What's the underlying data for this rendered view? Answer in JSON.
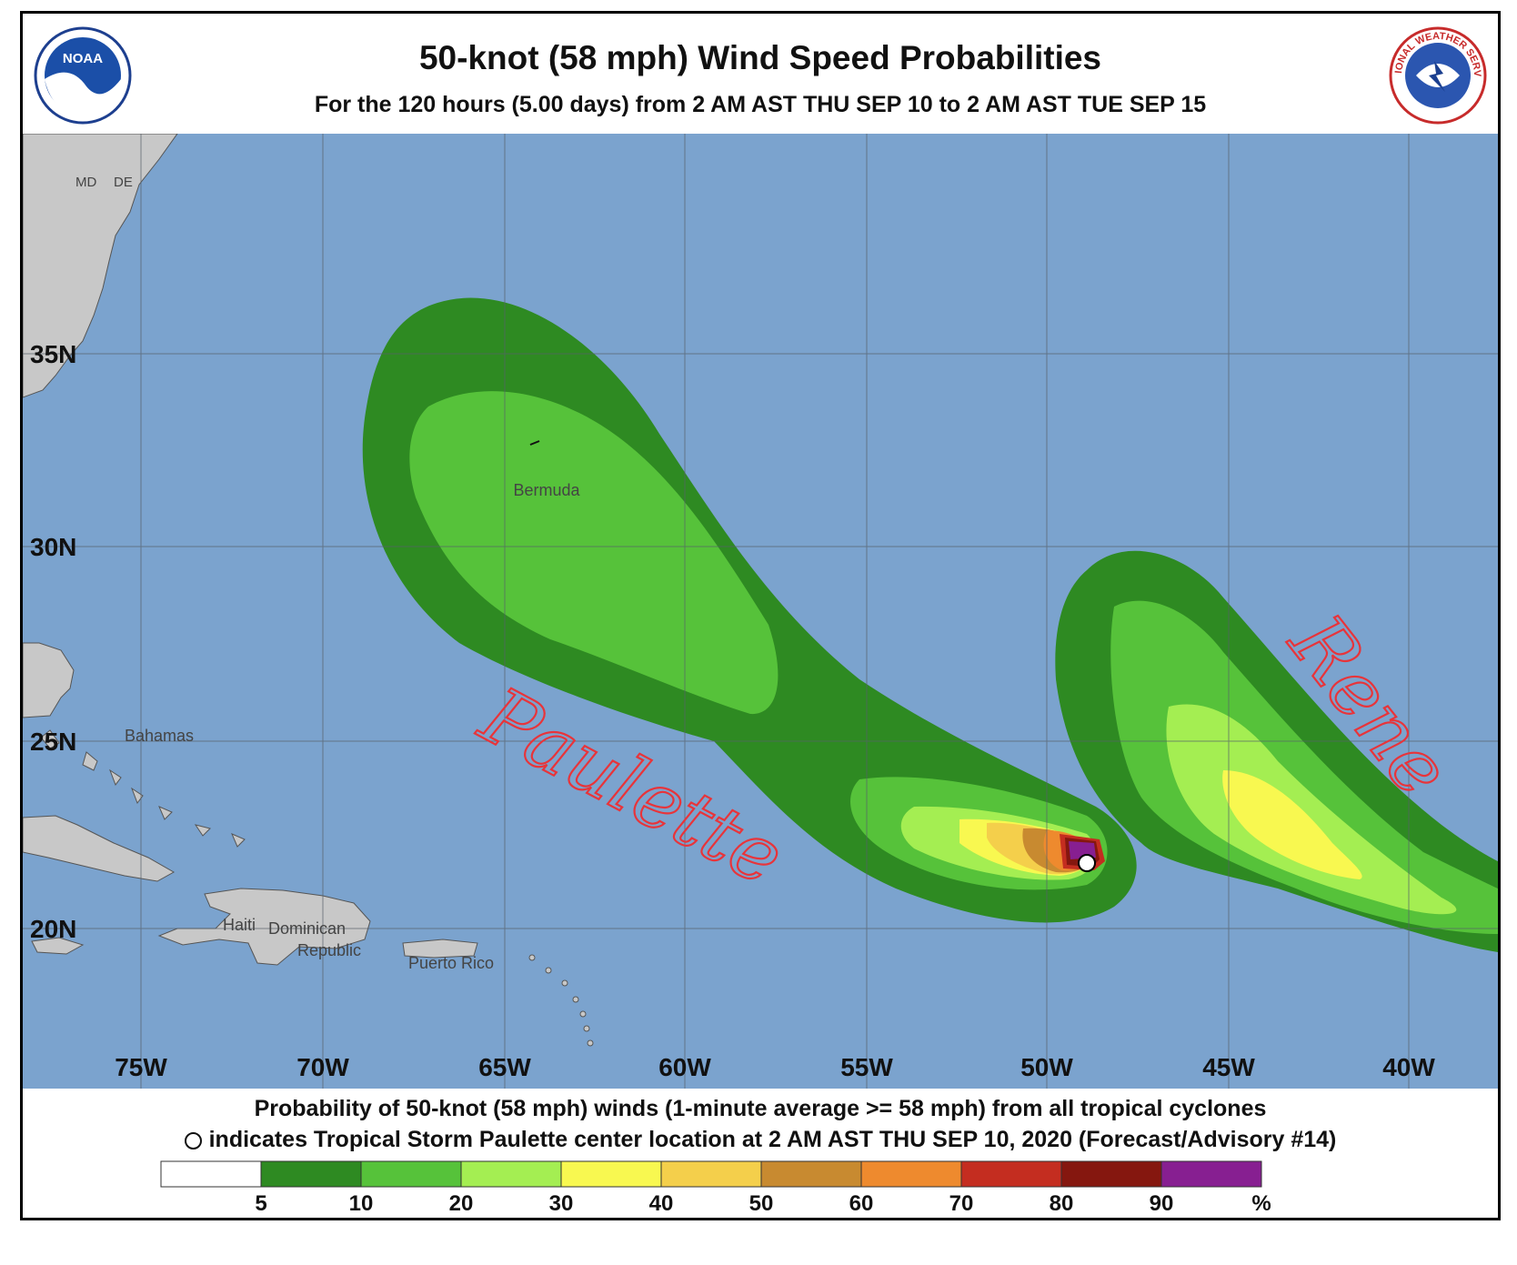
{
  "header": {
    "title": "50-knot (58 mph) Wind Speed Probabilities",
    "subtitle": "For the 120 hours (5.00 days) from 2 AM AST THU SEP 10 to 2 AM AST TUE SEP 15",
    "left_logo_text": "NOAA",
    "right_logo_text": "NATIONAL WEATHER SERVICE"
  },
  "map": {
    "ocean_color": "#7ba3ce",
    "land_color": "#c8c8c8",
    "lat_labels": [
      "35N",
      "30N",
      "25N",
      "20N"
    ],
    "lon_labels": [
      "75W",
      "70W",
      "65W",
      "60W",
      "55W",
      "50W",
      "45W",
      "40W"
    ],
    "place_labels": {
      "bermuda": "Bermuda",
      "bahamas": "Bahamas",
      "haiti": "Haiti",
      "dominican_1": "Dominican",
      "dominican_2": "Republic",
      "puerto_rico": "Puerto Rico",
      "md": "MD",
      "de": "DE"
    },
    "annotations": {
      "paulette": "Paulette",
      "rene": "Rene"
    },
    "annotation_color": "#e8343a"
  },
  "footer": {
    "line1": "Probability of 50-knot (58 mph) winds (1-minute average >= 58 mph) from all tropical cyclones",
    "line2": "indicates Tropical Storm Paulette center location at 2 AM AST THU SEP 10, 2020 (Forecast/Advisory #14)",
    "legend": {
      "colors": [
        "#ffffff",
        "#2e8a22",
        "#56c23a",
        "#a4ee52",
        "#f8f850",
        "#f4cf4b",
        "#c88a30",
        "#ee8a2e",
        "#c42d20",
        "#85170f",
        "#871f91"
      ],
      "labels": [
        "5",
        "10",
        "20",
        "30",
        "40",
        "50",
        "60",
        "70",
        "80",
        "90",
        "%"
      ]
    }
  }
}
